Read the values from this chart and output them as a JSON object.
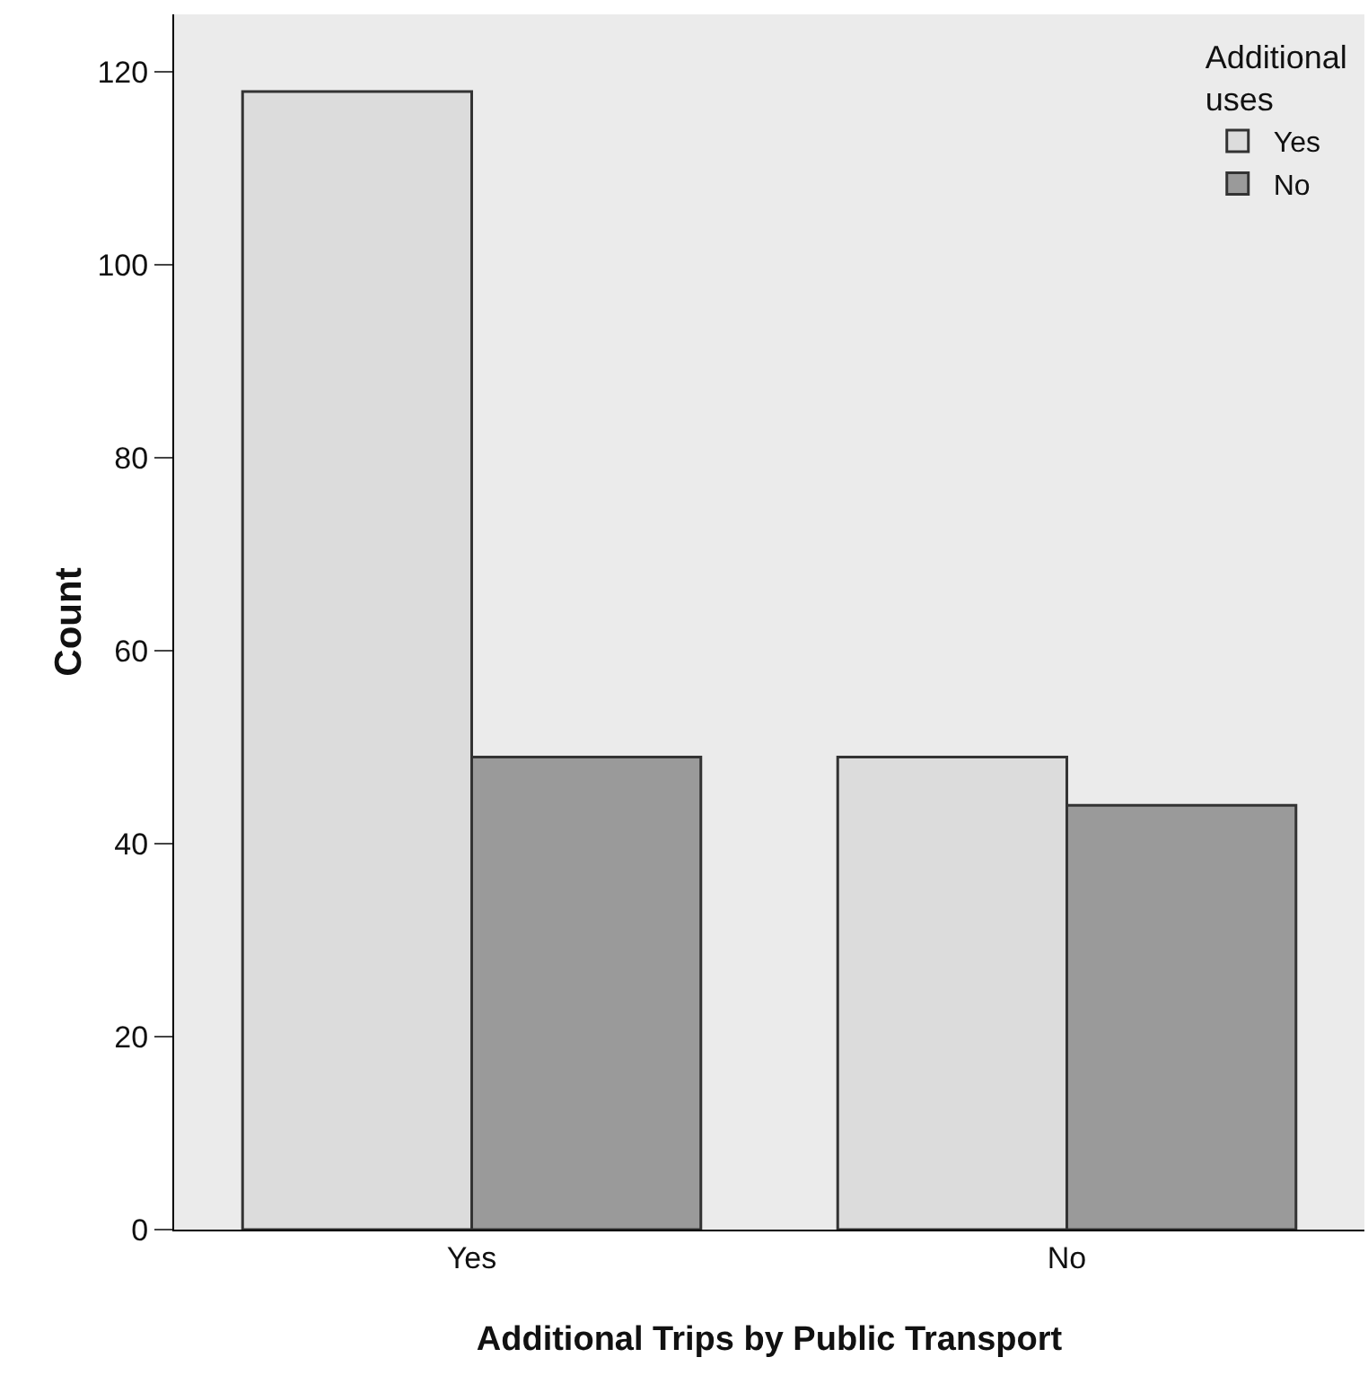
{
  "chart_data": {
    "type": "bar",
    "xlabel": "Additional Trips by Public Transport",
    "ylabel": "Count",
    "legend_title": "Additional uses",
    "categories": [
      "Yes",
      "No"
    ],
    "series": [
      {
        "name": "Yes",
        "color": "#dcdcdc",
        "values": [
          118,
          49
        ]
      },
      {
        "name": "No",
        "color": "#9a9a9a",
        "values": [
          49,
          44
        ]
      }
    ],
    "ylim": [
      0,
      126
    ],
    "yticks": [
      0,
      20,
      40,
      60,
      80,
      100,
      120
    ],
    "grid": false,
    "legend": "top right"
  }
}
